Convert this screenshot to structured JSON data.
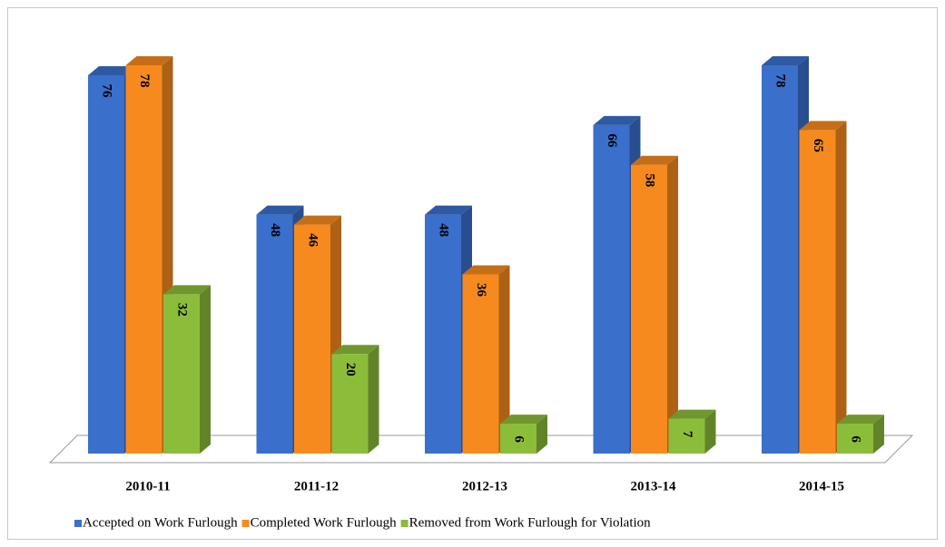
{
  "chart_data": {
    "type": "bar3d",
    "categories": [
      "2010-11",
      "2011-12",
      "2012-13",
      "2013-14",
      "2014-15"
    ],
    "series": [
      {
        "name": "Accepted on Work Furlough",
        "color": "#3a6fcc",
        "values": [
          76,
          48,
          48,
          66,
          78
        ]
      },
      {
        "name": "Completed Work Furlough",
        "color": "#f68a1e",
        "values": [
          78,
          46,
          36,
          58,
          65
        ]
      },
      {
        "name": "Removed from Work Furlough for Violation",
        "color": "#8cbd3a",
        "values": [
          32,
          20,
          6,
          7,
          6
        ]
      }
    ],
    "legend": "bottom"
  }
}
